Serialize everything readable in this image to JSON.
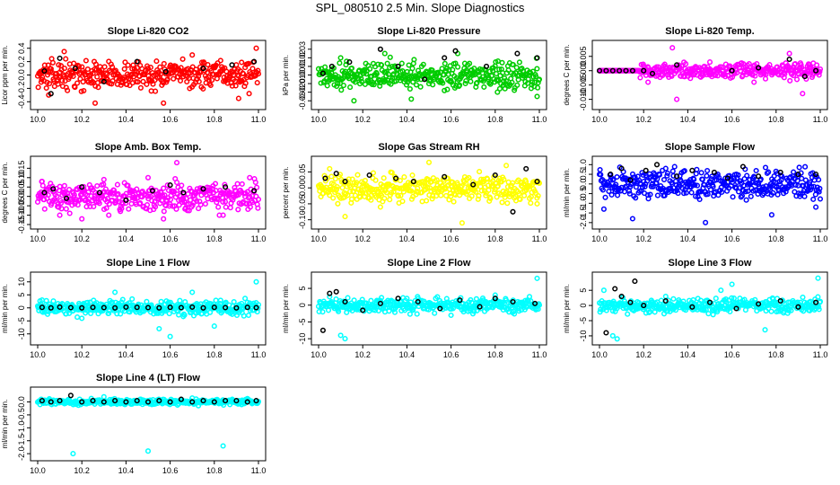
{
  "figure_title": "SPL_080510  2.5 Min. Slope Diagnostics",
  "colors": {
    "flagged": "#000000",
    "red": "#ff0000",
    "green": "#00cc00",
    "magenta": "#ff00ff",
    "yellow": "#ffff00",
    "blue": "#0000ff",
    "cyan": "#00ffff"
  },
  "chart_data": [
    {
      "type": "scatter",
      "title": "Slope Li-820 CO2",
      "ylabel": "Licor ppm per min.",
      "xlabel": "",
      "xlim": [
        10.0,
        11.0
      ],
      "xticks": [
        "10.0",
        "10.2",
        "10.4",
        "10.6",
        "10.8",
        "11.0"
      ],
      "ylim": [
        -0.45,
        0.45
      ],
      "yticks": [
        "-0.4",
        "-0.2",
        "0.0",
        "0.2",
        "0.4"
      ],
      "color_name": "red",
      "sample_points": [
        [
          10.02,
          0.05
        ],
        [
          10.05,
          -0.3
        ],
        [
          10.12,
          0.35
        ],
        [
          10.26,
          -0.42
        ],
        [
          10.5,
          0.1
        ],
        [
          10.57,
          -0.42
        ],
        [
          10.7,
          0.3
        ],
        [
          10.91,
          -0.35
        ],
        [
          10.99,
          0.4
        ]
      ],
      "flagged_points": [
        [
          10.03,
          0.06
        ],
        [
          10.06,
          -0.28
        ],
        [
          10.1,
          0.25
        ],
        [
          10.17,
          0.1
        ],
        [
          10.3,
          -0.1
        ],
        [
          10.45,
          0.2
        ],
        [
          10.58,
          0.05
        ],
        [
          10.75,
          0.1
        ],
        [
          10.88,
          0.15
        ],
        [
          10.98,
          0.2
        ]
      ]
    },
    {
      "type": "scatter",
      "title": "Slope Li-820 Pressure",
      "ylabel": "kPa per min.",
      "xlabel": "",
      "xlim": [
        10.0,
        11.0
      ],
      "xticks": [
        "10.0",
        "10.2",
        "10.4",
        "10.6",
        "10.8",
        "11.0"
      ],
      "ylim": [
        -0.035,
        0.035
      ],
      "yticks": [
        "-0.03",
        "-0.02",
        "-0.01",
        "0.00",
        "0.01",
        "0.02",
        "0.03"
      ],
      "color_name": "green",
      "sample_points": [
        [
          10.05,
          -0.005
        ],
        [
          10.1,
          0.02
        ],
        [
          10.16,
          -0.03
        ],
        [
          10.3,
          0.025
        ],
        [
          10.42,
          -0.028
        ],
        [
          10.5,
          -0.01
        ],
        [
          10.63,
          0.025
        ],
        [
          10.81,
          -0.02
        ],
        [
          10.99,
          -0.025
        ]
      ],
      "flagged_points": [
        [
          10.02,
          0.002
        ],
        [
          10.06,
          0.01
        ],
        [
          10.14,
          0.015
        ],
        [
          10.28,
          0.03
        ],
        [
          10.36,
          0.01
        ],
        [
          10.48,
          -0.005
        ],
        [
          10.57,
          0.02
        ],
        [
          10.62,
          0.028
        ],
        [
          10.76,
          0.01
        ],
        [
          10.9,
          0.025
        ],
        [
          10.99,
          0.02
        ]
      ]
    },
    {
      "type": "scatter",
      "title": "Slope Li-820 Temp.",
      "ylabel": "degrees C per min.",
      "xlabel": "",
      "xlim": [
        10.0,
        11.0
      ],
      "xticks": [
        "10.0",
        "10.2",
        "10.4",
        "10.6",
        "10.8",
        "11.0"
      ],
      "ylim": [
        -0.012,
        0.009
      ],
      "yticks": [
        "-0.010",
        "-0.005",
        "0.000",
        "0.005"
      ],
      "color_name": "magenta",
      "sample_points": [
        [
          10.18,
          0.0
        ],
        [
          10.22,
          -0.004
        ],
        [
          10.33,
          0.008
        ],
        [
          10.35,
          -0.01
        ],
        [
          10.5,
          0.003
        ],
        [
          10.7,
          -0.004
        ],
        [
          10.86,
          0.006
        ],
        [
          10.92,
          -0.008
        ],
        [
          10.95,
          0.002
        ]
      ],
      "flagged_points": [
        [
          10.0,
          0.0
        ],
        [
          10.03,
          0.0
        ],
        [
          10.06,
          0.0
        ],
        [
          10.09,
          0.0
        ],
        [
          10.12,
          0.0
        ],
        [
          10.15,
          0.0
        ],
        [
          10.2,
          0.0
        ],
        [
          10.24,
          -0.001
        ],
        [
          10.35,
          0.002
        ],
        [
          10.6,
          0.0
        ],
        [
          10.72,
          0.001
        ],
        [
          10.86,
          0.004
        ],
        [
          10.93,
          -0.002
        ],
        [
          10.98,
          0.0
        ]
      ]
    },
    {
      "type": "scatter",
      "title": "Slope Amb. Box Temp.",
      "ylabel": "degrees C per min.",
      "xlabel": "",
      "xlim": [
        10.0,
        11.0
      ],
      "xticks": [
        "10.0",
        "10.2",
        "10.4",
        "10.6",
        "10.8",
        "11.0"
      ],
      "ylim": [
        -0.15,
        0.19
      ],
      "yticks": [
        "-0.15",
        "-0.10",
        "-0.05",
        "0.00",
        "0.05",
        "0.10",
        "0.15"
      ],
      "color_name": "magenta",
      "sample_points": [
        [
          10.02,
          0.08
        ],
        [
          10.1,
          -0.1
        ],
        [
          10.2,
          -0.12
        ],
        [
          10.3,
          0.09
        ],
        [
          10.5,
          0.1
        ],
        [
          10.57,
          -0.12
        ],
        [
          10.63,
          0.18
        ],
        [
          10.84,
          -0.1
        ],
        [
          10.96,
          0.1
        ]
      ],
      "flagged_points": [
        [
          10.03,
          0.02
        ],
        [
          10.07,
          0.04
        ],
        [
          10.13,
          -0.01
        ],
        [
          10.2,
          0.05
        ],
        [
          10.28,
          0.02
        ],
        [
          10.4,
          -0.02
        ],
        [
          10.52,
          0.03
        ],
        [
          10.6,
          0.06
        ],
        [
          10.66,
          0.02
        ],
        [
          10.75,
          0.04
        ],
        [
          10.85,
          0.05
        ],
        [
          10.98,
          0.03
        ]
      ]
    },
    {
      "type": "scatter",
      "title": "Slope Gas Stream RH",
      "ylabel": "percent per min.",
      "xlabel": "",
      "xlim": [
        10.0,
        11.0
      ],
      "xticks": [
        "10.0",
        "10.2",
        "10.4",
        "10.6",
        "10.8",
        "11.0"
      ],
      "ylim": [
        -0.115,
        0.085
      ],
      "yticks": [
        "-0.10",
        "-0.05",
        "0.00",
        "0.05"
      ],
      "color_name": "yellow",
      "sample_points": [
        [
          10.05,
          0.06
        ],
        [
          10.12,
          -0.09
        ],
        [
          10.28,
          -0.06
        ],
        [
          10.5,
          0.08
        ],
        [
          10.65,
          -0.11
        ],
        [
          10.85,
          0.07
        ],
        [
          10.99,
          -0.05
        ]
      ],
      "flagged_points": [
        [
          10.03,
          0.03
        ],
        [
          10.08,
          0.045
        ],
        [
          10.12,
          0.02
        ],
        [
          10.23,
          0.04
        ],
        [
          10.35,
          0.03
        ],
        [
          10.43,
          0.02
        ],
        [
          10.57,
          0.035
        ],
        [
          10.7,
          0.01
        ],
        [
          10.8,
          0.04
        ],
        [
          10.88,
          -0.075
        ],
        [
          10.94,
          0.06
        ],
        [
          10.99,
          0.02
        ]
      ]
    },
    {
      "type": "scatter",
      "title": "Slope Sample Flow",
      "ylabel": "ml/min per min.",
      "xlabel": "",
      "xlim": [
        10.0,
        11.0
      ],
      "xticks": [
        "10.0",
        "10.2",
        "10.4",
        "10.6",
        "10.8",
        "11.0"
      ],
      "ylim": [
        -2.1,
        1.2
      ],
      "yticks": [
        "-2.0",
        "-1.5",
        "-1.0",
        "-0.5",
        "0.0",
        "0.5",
        "1.0"
      ],
      "color_name": "blue",
      "sample_points": [
        [
          10.02,
          -1.3
        ],
        [
          10.15,
          -1.8
        ],
        [
          10.3,
          0.8
        ],
        [
          10.48,
          -2.0
        ],
        [
          10.62,
          0.5
        ],
        [
          10.78,
          -1.6
        ],
        [
          10.9,
          0.4
        ],
        [
          10.98,
          -1.2
        ]
      ],
      "flagged_points": [
        [
          10.05,
          0.5
        ],
        [
          10.1,
          0.8
        ],
        [
          10.14,
          0.2
        ],
        [
          10.21,
          0.7
        ],
        [
          10.26,
          1.0
        ],
        [
          10.35,
          0.4
        ],
        [
          10.42,
          0.7
        ],
        [
          10.52,
          0.6
        ],
        [
          10.58,
          0.3
        ],
        [
          10.65,
          0.9
        ],
        [
          10.72,
          0.4
        ],
        [
          10.82,
          0.6
        ],
        [
          10.9,
          0.5
        ],
        [
          10.98,
          0.5
        ]
      ]
    },
    {
      "type": "scatter",
      "title": "Slope Line 1 Flow",
      "ylabel": "ml/min per min.",
      "xlabel": "",
      "xlim": [
        10.0,
        11.0
      ],
      "xticks": [
        "10.0",
        "10.2",
        "10.4",
        "10.6",
        "10.8",
        "11.0"
      ],
      "ylim": [
        -12.5,
        12.0
      ],
      "yticks": [
        "-10",
        "-5",
        "0",
        "5",
        "10"
      ],
      "color_name": "cyan",
      "sample_points": [
        [
          10.02,
          3.0
        ],
        [
          10.2,
          -4.0
        ],
        [
          10.35,
          6.0
        ],
        [
          10.55,
          -8.0
        ],
        [
          10.6,
          -11.0
        ],
        [
          10.7,
          6.0
        ],
        [
          10.8,
          -7.0
        ],
        [
          10.99,
          10.0
        ]
      ],
      "flagged_points": [
        [
          10.02,
          0.2
        ],
        [
          10.06,
          0.0
        ],
        [
          10.1,
          0.3
        ],
        [
          10.15,
          0.1
        ],
        [
          10.2,
          0.0
        ],
        [
          10.25,
          0.2
        ],
        [
          10.3,
          0.1
        ],
        [
          10.35,
          0.0
        ],
        [
          10.4,
          0.3
        ],
        [
          10.45,
          0.2
        ],
        [
          10.5,
          0.1
        ],
        [
          10.55,
          0.0
        ],
        [
          10.6,
          0.2
        ],
        [
          10.65,
          0.1
        ],
        [
          10.7,
          0.3
        ],
        [
          10.75,
          0.0
        ],
        [
          10.8,
          0.2
        ],
        [
          10.85,
          0.1
        ],
        [
          10.9,
          0.0
        ],
        [
          10.95,
          0.2
        ],
        [
          10.99,
          0.1
        ]
      ]
    },
    {
      "type": "scatter",
      "title": "Slope Line 2 Flow",
      "ylabel": "ml/min per min.",
      "xlabel": "",
      "xlim": [
        10.0,
        11.0
      ],
      "xticks": [
        "10.0",
        "10.2",
        "10.4",
        "10.6",
        "10.8",
        "11.0"
      ],
      "ylim": [
        -10.5,
        8.5
      ],
      "yticks": [
        "-10",
        "-5",
        "0",
        "5"
      ],
      "color_name": "cyan",
      "sample_points": [
        [
          10.05,
          2.5
        ],
        [
          10.1,
          -9.0
        ],
        [
          10.12,
          -10.0
        ],
        [
          10.4,
          2.0
        ],
        [
          10.6,
          -3.0
        ],
        [
          10.8,
          3.0
        ],
        [
          10.99,
          8.0
        ]
      ],
      "flagged_points": [
        [
          10.02,
          -7.5
        ],
        [
          10.05,
          3.5
        ],
        [
          10.08,
          4.0
        ],
        [
          10.12,
          1.0
        ],
        [
          10.2,
          -1.5
        ],
        [
          10.28,
          0.5
        ],
        [
          10.36,
          2.0
        ],
        [
          10.45,
          1.0
        ],
        [
          10.55,
          -1.0
        ],
        [
          10.64,
          1.5
        ],
        [
          10.73,
          -0.5
        ],
        [
          10.8,
          2.0
        ],
        [
          10.88,
          1.0
        ],
        [
          10.98,
          0.5
        ]
      ]
    },
    {
      "type": "scatter",
      "title": "Slope Line 3 Flow",
      "ylabel": "ml/min per min.",
      "xlabel": "",
      "xlim": [
        10.0,
        11.0
      ],
      "xticks": [
        "10.0",
        "10.2",
        "10.4",
        "10.6",
        "10.8",
        "11.0"
      ],
      "ylim": [
        -11.5,
        9.5
      ],
      "yticks": [
        "-10",
        "-5",
        "0",
        "5"
      ],
      "color_name": "cyan",
      "sample_points": [
        [
          10.02,
          5.0
        ],
        [
          10.06,
          -10.0
        ],
        [
          10.08,
          -11.0
        ],
        [
          10.3,
          3.0
        ],
        [
          10.55,
          5.0
        ],
        [
          10.6,
          7.0
        ],
        [
          10.75,
          -8.0
        ],
        [
          10.99,
          9.0
        ]
      ],
      "flagged_points": [
        [
          10.03,
          -9.0
        ],
        [
          10.07,
          5.5
        ],
        [
          10.1,
          3.0
        ],
        [
          10.14,
          1.0
        ],
        [
          10.16,
          8.0
        ],
        [
          10.2,
          0.0
        ],
        [
          10.3,
          1.5
        ],
        [
          10.42,
          -0.5
        ],
        [
          10.5,
          1.0
        ],
        [
          10.62,
          -1.0
        ],
        [
          10.72,
          0.5
        ],
        [
          10.82,
          1.5
        ],
        [
          10.9,
          -0.5
        ],
        [
          10.98,
          1.0
        ]
      ]
    },
    {
      "type": "scatter",
      "title": "Slope Line 4 (LT) Flow",
      "ylabel": "ml/min per min.",
      "xlabel": "",
      "xlim": [
        10.0,
        11.0
      ],
      "xticks": [
        "10.0",
        "10.2",
        "10.4",
        "10.6",
        "10.8",
        "11.0"
      ],
      "ylim": [
        -2.1,
        0.4
      ],
      "yticks": [
        "-2.0",
        "-1.5",
        "-1.0",
        "-0.5",
        "0.0"
      ],
      "color_name": "cyan",
      "sample_points": [
        [
          10.16,
          -2.0
        ],
        [
          10.5,
          -1.9
        ],
        [
          10.84,
          -1.7
        ],
        [
          10.3,
          0.2
        ],
        [
          10.7,
          0.15
        ]
      ],
      "flagged_points": [
        [
          10.02,
          0.05
        ],
        [
          10.06,
          0.0
        ],
        [
          10.1,
          0.05
        ],
        [
          10.15,
          0.25
        ],
        [
          10.2,
          0.0
        ],
        [
          10.25,
          0.05
        ],
        [
          10.3,
          0.0
        ],
        [
          10.35,
          0.05
        ],
        [
          10.4,
          0.0
        ],
        [
          10.45,
          0.05
        ],
        [
          10.5,
          0.0
        ],
        [
          10.55,
          0.05
        ],
        [
          10.6,
          0.0
        ],
        [
          10.65,
          0.1
        ],
        [
          10.7,
          0.0
        ],
        [
          10.75,
          0.05
        ],
        [
          10.8,
          0.0
        ],
        [
          10.85,
          0.05
        ],
        [
          10.9,
          0.05
        ],
        [
          10.95,
          0.0
        ],
        [
          10.99,
          0.05
        ]
      ]
    }
  ]
}
